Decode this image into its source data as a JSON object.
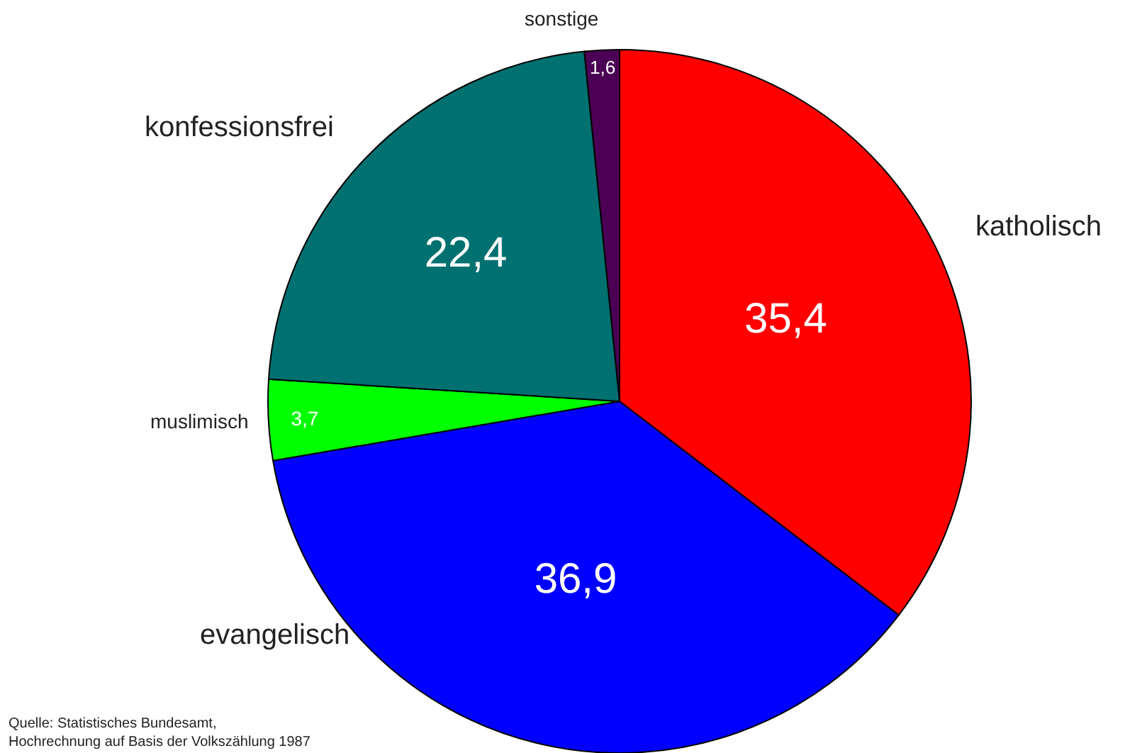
{
  "chart_data": {
    "type": "pie",
    "categories": [
      "katholisch",
      "evangelisch",
      "muslimisch",
      "konfessionsfrei",
      "sonstige"
    ],
    "values": [
      35.4,
      36.9,
      3.7,
      22.4,
      1.6
    ],
    "value_labels": [
      "35,4",
      "36,9",
      "3,7",
      "22,4",
      "1,6"
    ],
    "colors": [
      "#ff0000",
      "#0000ff",
      "#00ff00",
      "#007070",
      "#4b0055"
    ],
    "legend": false,
    "annotations": [
      "Quelle: Statistisches Bundesamt,\nHochrechnung auf Basis der Volkszählung 1987"
    ]
  }
}
